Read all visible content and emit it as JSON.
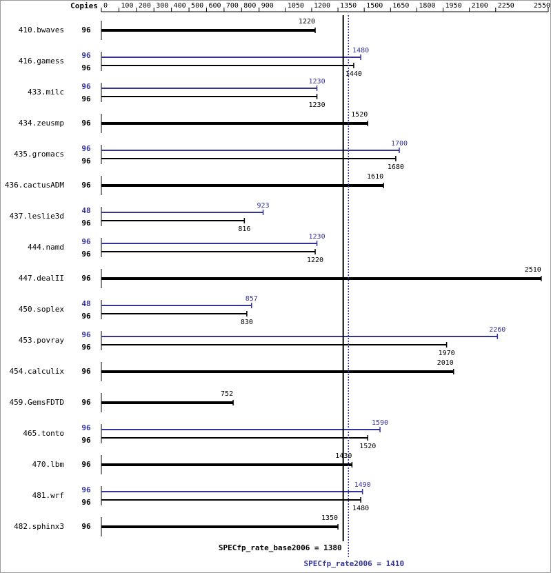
{
  "chart_data": {
    "type": "bar",
    "orientation": "horizontal",
    "copies_label": "Copies",
    "categories": [
      "410.bwaves",
      "416.gamess",
      "433.milc",
      "434.zeusmp",
      "435.gromacs",
      "436.cactusADM",
      "437.leslie3d",
      "444.namd",
      "447.dealII",
      "450.soplex",
      "453.povray",
      "454.calculix",
      "459.GemsFDTD",
      "465.tonto",
      "470.lbm",
      "481.wrf",
      "482.sphinx3"
    ],
    "series": [
      {
        "color": "#000000",
        "copies": [
          96,
          96,
          96,
          96,
          96,
          96,
          96,
          96,
          96,
          96,
          96,
          96,
          96,
          96,
          96,
          96,
          96
        ],
        "values": [
          1220,
          1440,
          1230,
          1520,
          1680,
          1610,
          816,
          1220,
          2510,
          830,
          1970,
          2010,
          752,
          1520,
          1430,
          1480,
          1350
        ]
      },
      {
        "color": "#333399",
        "copies": [
          null,
          96,
          96,
          null,
          96,
          null,
          48,
          96,
          null,
          48,
          96,
          null,
          null,
          96,
          null,
          96,
          null
        ],
        "values": [
          null,
          1480,
          1230,
          null,
          1700,
          null,
          923,
          1230,
          null,
          857,
          2260,
          null,
          null,
          1590,
          null,
          1490,
          null
        ]
      }
    ],
    "xlim": [
      0,
      2550
    ],
    "xticks": [
      0,
      100,
      200,
      300,
      400,
      500,
      600,
      700,
      800,
      900,
      1050,
      1200,
      1350,
      1500,
      1650,
      1800,
      1950,
      2100,
      2250,
      2550
    ],
    "reference_lines": [
      {
        "value": 1380,
        "label": "SPECfp_rate_base2006 = 1380",
        "color": "#000000",
        "dashed": false
      },
      {
        "value": 1410,
        "label": "SPECfp_rate2006 = 1410",
        "color": "#333399",
        "dashed": true
      }
    ]
  }
}
